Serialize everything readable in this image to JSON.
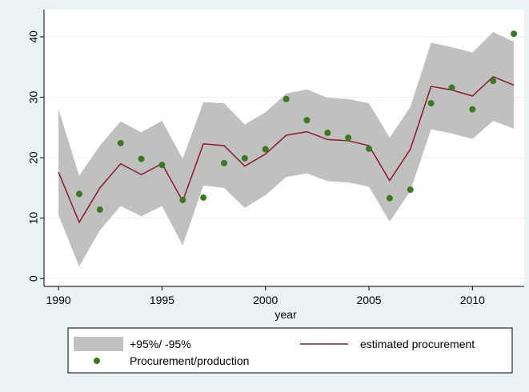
{
  "chart_data": {
    "type": "line",
    "x": [
      1990,
      1991,
      1992,
      1993,
      1994,
      1995,
      1996,
      1997,
      1998,
      1999,
      2000,
      2001,
      2002,
      2003,
      2004,
      2005,
      2006,
      2007,
      2008,
      2009,
      2010,
      2011,
      2012
    ],
    "band": {
      "name": "+95%/ -95%",
      "color": "#c0c0c0",
      "upper": [
        28,
        17,
        22,
        26,
        24.2,
        26.1,
        19.8,
        29.2,
        29,
        25.5,
        27.5,
        30.6,
        31.3,
        29.9,
        29.7,
        29,
        23.3,
        28.4,
        39,
        38.3,
        37.4,
        40.8,
        39.2
      ],
      "lower": [
        10.5,
        2,
        8,
        12,
        10.3,
        12,
        5.5,
        15.4,
        15,
        11.7,
        13.8,
        16.8,
        17.4,
        16.1,
        15.9,
        15.2,
        9.4,
        14.5,
        24.7,
        24,
        23.1,
        26.1,
        24.8
      ]
    },
    "series": [
      {
        "name": "estimated procurement",
        "color": "#8b1a2b",
        "kind": "line",
        "values": [
          17.6,
          9.3,
          15,
          19,
          17.2,
          19,
          12.8,
          22.3,
          22,
          18.6,
          20.6,
          23.7,
          24.3,
          23,
          22.8,
          22,
          16.2,
          21.4,
          31.8,
          31.2,
          30.2,
          33.4,
          32
        ]
      },
      {
        "name": "Procurement/production",
        "color": "#3a7a1e",
        "kind": "scatter",
        "values": [
          null,
          14,
          11.4,
          22.4,
          19.8,
          18.8,
          13,
          13.4,
          19.1,
          19.9,
          21.4,
          29.7,
          26.2,
          24.1,
          23.3,
          21.5,
          13.3,
          14.7,
          29,
          31.6,
          28,
          32.7,
          40.5
        ]
      }
    ],
    "xlabel": "year",
    "xlim": [
      1989.3,
      2012.5
    ],
    "xticks": [
      1990,
      1995,
      2000,
      2005,
      2010
    ],
    "ylim": [
      -1.3,
      44.5
    ],
    "yticks": [
      0,
      10,
      20,
      30,
      40
    ],
    "grid": true
  }
}
